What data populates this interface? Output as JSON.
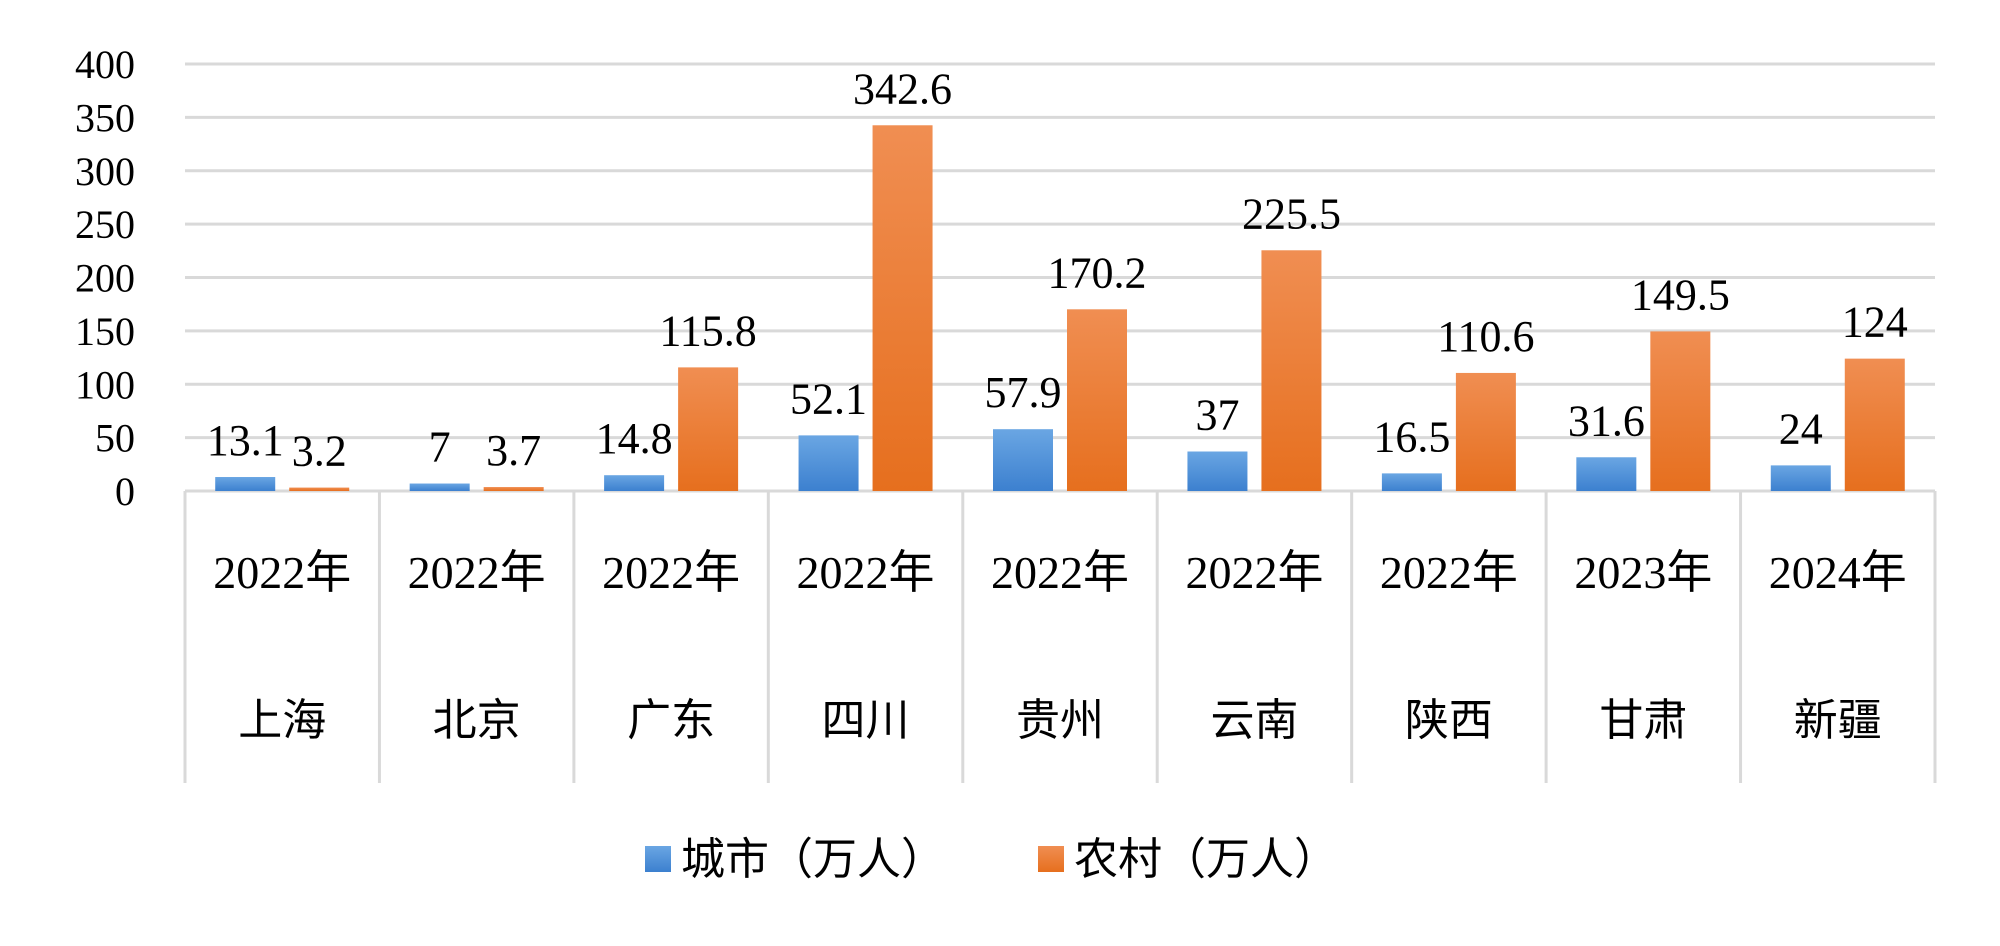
{
  "chart_data": {
    "type": "bar",
    "title": "",
    "xlabel": "",
    "ylabel": "",
    "ylim": [
      0,
      400
    ],
    "yticks": [
      0,
      50,
      100,
      150,
      200,
      250,
      300,
      350,
      400
    ],
    "grid": true,
    "legend_position": "bottom",
    "categories": [
      {
        "year": "2022年",
        "region": "上海"
      },
      {
        "year": "2022年",
        "region": "北京"
      },
      {
        "year": "2022年",
        "region": "广东"
      },
      {
        "year": "2022年",
        "region": "四川"
      },
      {
        "year": "2022年",
        "region": "贵州"
      },
      {
        "year": "2022年",
        "region": "云南"
      },
      {
        "year": "2022年",
        "region": "陕西"
      },
      {
        "year": "2023年",
        "region": "甘肃"
      },
      {
        "year": "2024年",
        "region": "新疆"
      }
    ],
    "series": [
      {
        "name": "城市（万人）",
        "color": "#4A90D9",
        "values": [
          13.1,
          7,
          14.8,
          52.1,
          57.9,
          37,
          16.5,
          31.6,
          24
        ]
      },
      {
        "name": "农村（万人）",
        "color": "#ED7D31",
        "values": [
          3.2,
          3.7,
          115.8,
          342.6,
          170.2,
          225.5,
          110.6,
          149.5,
          124
        ]
      }
    ]
  }
}
